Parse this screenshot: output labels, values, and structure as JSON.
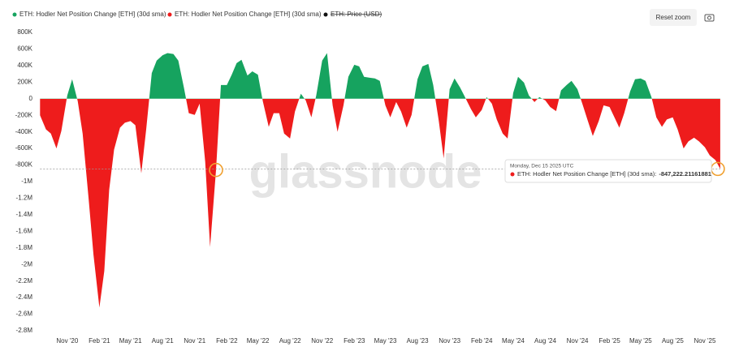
{
  "chart_data": {
    "type": "area",
    "watermark": "glassnode",
    "reset_zoom": "Reset zoom",
    "x": [
      "2020-08-15",
      "2020-09-01",
      "2020-09-15",
      "2020-10-01",
      "2020-10-15",
      "2020-11-01",
      "2020-11-15",
      "2020-12-01",
      "2020-12-15",
      "2021-01-01",
      "2021-01-15",
      "2021-02-01",
      "2021-02-15",
      "2021-03-01",
      "2021-03-15",
      "2021-04-01",
      "2021-04-15",
      "2021-05-01",
      "2021-05-15",
      "2021-06-01",
      "2021-06-15",
      "2021-07-01",
      "2021-07-15",
      "2021-08-01",
      "2021-08-15",
      "2021-09-01",
      "2021-09-15",
      "2021-10-01",
      "2021-10-15",
      "2021-11-01",
      "2021-11-15",
      "2021-12-01",
      "2021-12-15",
      "2022-01-01",
      "2022-01-15",
      "2022-02-01",
      "2022-02-15",
      "2022-03-01",
      "2022-03-15",
      "2022-04-01",
      "2022-04-15",
      "2022-05-01",
      "2022-05-15",
      "2022-06-01",
      "2022-06-15",
      "2022-07-01",
      "2022-07-15",
      "2022-08-01",
      "2022-08-15",
      "2022-09-01",
      "2022-09-15",
      "2022-10-01",
      "2022-10-15",
      "2022-11-01",
      "2022-11-15",
      "2022-12-01",
      "2022-12-15",
      "2023-01-01",
      "2023-01-15",
      "2023-02-01",
      "2023-02-15",
      "2023-03-01",
      "2023-03-15",
      "2023-04-01",
      "2023-04-15",
      "2023-05-01",
      "2023-05-15",
      "2023-06-01",
      "2023-06-15",
      "2023-07-01",
      "2023-07-15",
      "2023-08-01",
      "2023-08-15",
      "2023-09-01",
      "2023-09-15",
      "2023-10-01",
      "2023-10-15",
      "2023-11-01",
      "2023-11-15",
      "2023-12-01",
      "2023-12-15",
      "2024-01-01",
      "2024-01-15",
      "2024-02-01",
      "2024-02-15",
      "2024-03-01",
      "2024-03-15",
      "2024-04-01",
      "2024-04-15",
      "2024-05-01",
      "2024-05-15",
      "2024-06-01",
      "2024-06-15",
      "2024-07-01",
      "2024-07-15",
      "2024-08-01",
      "2024-08-15",
      "2024-09-01",
      "2024-09-15",
      "2024-10-01",
      "2024-10-15",
      "2024-11-01",
      "2024-11-15",
      "2024-12-01",
      "2024-12-15",
      "2025-01-01",
      "2025-01-15",
      "2025-02-01",
      "2025-02-15",
      "2025-03-01",
      "2025-03-15",
      "2025-04-01",
      "2025-04-15",
      "2025-05-01",
      "2025-05-15",
      "2025-06-01",
      "2025-06-15",
      "2025-07-01",
      "2025-07-15",
      "2025-08-01",
      "2025-08-15",
      "2025-09-01",
      "2025-09-15",
      "2025-10-01",
      "2025-10-15",
      "2025-11-01",
      "2025-11-15",
      "2025-12-01",
      "2025-12-15"
    ],
    "series": [
      {
        "name": "ETH: Hodler Net Position Change [ETH] (30d sma)",
        "color": "#16a35f",
        "negative_color": "#ee1c1c",
        "values": [
          -200000,
          -370000,
          -420000,
          -600000,
          -390000,
          40000,
          235000,
          -30000,
          -420000,
          -1200000,
          -1880000,
          -2520000,
          -2080000,
          -1100000,
          -615000,
          -350000,
          -290000,
          -270000,
          -320000,
          -900000,
          -370000,
          310000,
          460000,
          525000,
          550000,
          540000,
          460000,
          135000,
          -175000,
          -195000,
          -60000,
          -760000,
          -1790000,
          -860000,
          165000,
          165000,
          290000,
          430000,
          470000,
          280000,
          330000,
          290000,
          -30000,
          -340000,
          -175000,
          -175000,
          -420000,
          -480000,
          -155000,
          60000,
          -20000,
          -225000,
          40000,
          460000,
          550000,
          -80000,
          -400000,
          -80000,
          265000,
          410000,
          390000,
          265000,
          255000,
          245000,
          215000,
          -80000,
          -225000,
          -40000,
          -155000,
          -350000,
          -195000,
          235000,
          390000,
          420000,
          165000,
          -270000,
          -720000,
          115000,
          245000,
          135000,
          20000,
          -125000,
          -225000,
          -135000,
          20000,
          -60000,
          -250000,
          -420000,
          -480000,
          70000,
          265000,
          195000,
          40000,
          -40000,
          20000,
          -20000,
          -100000,
          -150000,
          100000,
          165000,
          215000,
          115000,
          -60000,
          -270000,
          -450000,
          -270000,
          -80000,
          -100000,
          -225000,
          -350000,
          -175000,
          90000,
          235000,
          245000,
          215000,
          20000,
          -225000,
          -340000,
          -250000,
          -225000,
          -370000,
          -600000,
          -515000,
          -470000,
          -515000,
          -585000,
          -685000,
          -740000,
          -847222.21161881
        ]
      }
    ],
    "hidden_series": [
      {
        "name": "ETH: Price (USD)",
        "color": "#111111"
      }
    ],
    "highlight_points": [
      33,
      128
    ],
    "highlight_color": "#f0a030",
    "tooltip": {
      "title": "Monday, Dec 15 2025 UTC",
      "series_label": "ETH: Hodler Net Position Change [ETH] (30d sma):",
      "value_label": "-847,222.21161881"
    },
    "xlim": [
      "2020-08-15",
      "2025-12-15"
    ],
    "xticks": [
      {
        "value": "2020-11-01",
        "label": "Nov '20"
      },
      {
        "value": "2021-02-01",
        "label": "Feb '21"
      },
      {
        "value": "2021-05-01",
        "label": "May '21"
      },
      {
        "value": "2021-08-01",
        "label": "Aug '21"
      },
      {
        "value": "2021-11-01",
        "label": "Nov '21"
      },
      {
        "value": "2022-02-01",
        "label": "Feb '22"
      },
      {
        "value": "2022-05-01",
        "label": "May '22"
      },
      {
        "value": "2022-08-01",
        "label": "Aug '22"
      },
      {
        "value": "2022-11-01",
        "label": "Nov '22"
      },
      {
        "value": "2023-02-01",
        "label": "Feb '23"
      },
      {
        "value": "2023-05-01",
        "label": "May '23"
      },
      {
        "value": "2023-08-01",
        "label": "Aug '23"
      },
      {
        "value": "2023-11-01",
        "label": "Nov '23"
      },
      {
        "value": "2024-02-01",
        "label": "Feb '24"
      },
      {
        "value": "2024-05-01",
        "label": "May '24"
      },
      {
        "value": "2024-08-01",
        "label": "Aug '24"
      },
      {
        "value": "2024-11-01",
        "label": "Nov '24"
      },
      {
        "value": "2025-02-01",
        "label": "Feb '25"
      },
      {
        "value": "2025-05-01",
        "label": "May '25"
      },
      {
        "value": "2025-08-01",
        "label": "Aug '25"
      },
      {
        "value": "2025-11-01",
        "label": "Nov '25"
      }
    ],
    "ylim": [
      -2800000,
      800000
    ],
    "yticks": [
      {
        "value": 800000,
        "label": "800K"
      },
      {
        "value": 600000,
        "label": "600K"
      },
      {
        "value": 400000,
        "label": "400K"
      },
      {
        "value": 200000,
        "label": "200K"
      },
      0,
      {
        "value": -200000,
        "label": "-200K"
      },
      {
        "value": -400000,
        "label": "-400K"
      },
      {
        "value": -600000,
        "label": "-600K"
      },
      {
        "value": -800000,
        "label": "-800K"
      },
      {
        "value": -1000000,
        "label": "-1M"
      },
      {
        "value": -1200000,
        "label": "-1.2M"
      },
      {
        "value": -1400000,
        "label": "-1.4M"
      },
      {
        "value": -1600000,
        "label": "-1.6M"
      },
      {
        "value": -1800000,
        "label": "-1.8M"
      },
      {
        "value": -2000000,
        "label": "-2M"
      },
      {
        "value": -2200000,
        "label": "-2.2M"
      },
      {
        "value": -2400000,
        "label": "-2.4M"
      },
      {
        "value": -2600000,
        "label": "-2.6M"
      },
      {
        "value": -2800000,
        "label": "-2.8M"
      }
    ],
    "grid": false
  }
}
